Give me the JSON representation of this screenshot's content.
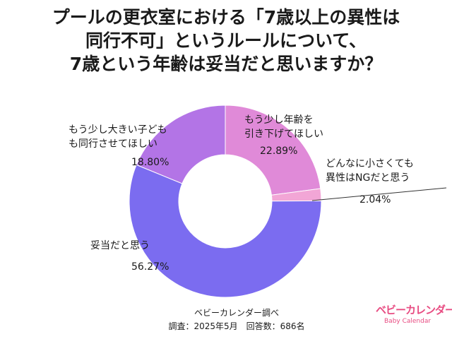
{
  "title_lines": [
    "プールの更衣室における「7歳以上の異性は",
    "同行不可」というルールについて、",
    "7歳という年齢は妥当だと思いますか？"
  ],
  "chart_data": {
    "type": "pie",
    "donut": true,
    "slices": [
      {
        "label_lines": [
          "もう少し年齢を",
          "引き下げてほしい"
        ],
        "value": 22.89,
        "display": "22.89%",
        "color": "#e08ad8"
      },
      {
        "label_lines": [
          "どんなに小さくても",
          "異性はNGだと思う"
        ],
        "value": 2.04,
        "display": "2.04%",
        "color": "#f2a6d6"
      },
      {
        "label_lines": [
          "妥当だと思う"
        ],
        "value": 56.27,
        "display": "56.27%",
        "color": "#7b6cf0"
      },
      {
        "label_lines": [
          "もう少し大きい子ども",
          "も同行させてほしい"
        ],
        "value": 18.8,
        "display": "18.80%",
        "color": "#b374e6"
      }
    ]
  },
  "source": {
    "line1": "ベビーカレンダー調べ",
    "line2": "調査：2025年5月　回答数：686名"
  },
  "logo": {
    "main": "ベビーカレンダー",
    "sub": "Baby Calendar",
    "color": "#e84c82"
  }
}
